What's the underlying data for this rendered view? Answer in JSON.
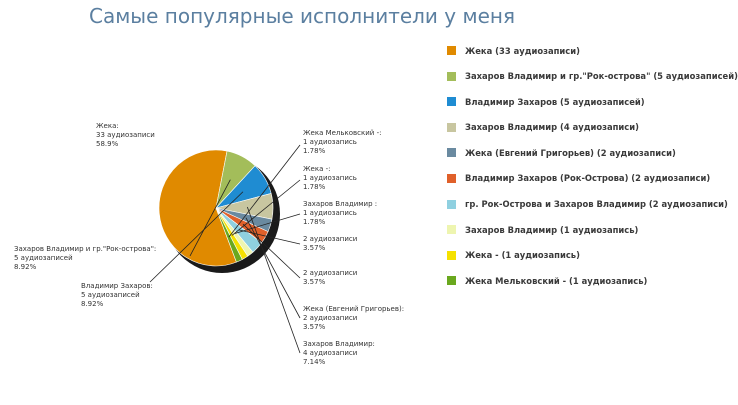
{
  "title": "Самые популярные исполнители у меня",
  "chart_data": {
    "type": "pie",
    "title": "Самые популярные исполнители у меня",
    "legend_position": "right",
    "slices": [
      {
        "name": "Жека (33 аудиозаписи)",
        "value": 33,
        "percent": "58.9%",
        "color": "#e08a00",
        "label": [
          "Жека:",
          "33 аудиозаписи",
          "58.9%"
        ]
      },
      {
        "name": "Захаров Владимир и гр.\"Рок-острова\" (5 аудиозаписей)",
        "value": 5,
        "percent": "8.92%",
        "color": "#a3bd5a",
        "label": [
          "Захаров Владимир и гр.\"Рок-острова\":",
          "5 аудиозаписей",
          "8.92%"
        ]
      },
      {
        "name": "Владимир Захаров (5 аудиозаписей)",
        "value": 5,
        "percent": "8.92%",
        "color": "#1f8cd2",
        "label": [
          "Владимир Захаров:",
          "5 аудиозаписей",
          "8.92%"
        ]
      },
      {
        "name": "Захаров Владимир (4 аудиозаписи)",
        "value": 4,
        "percent": "7.14%",
        "color": "#c8c6a0",
        "label": [
          "Захаров Владимир:",
          "4 аудиозаписи",
          "7.14%"
        ]
      },
      {
        "name": "Жека (Евгений Григорьев) (2 аудиозаписи)",
        "value": 2,
        "percent": "3.57%",
        "color": "#6a8aa0",
        "label": [
          "Жека (Евгений Григорьев):",
          "2 аудиозаписи",
          "3.57%"
        ]
      },
      {
        "name": "Владимир Захаров (Рок-Острова) (2 аудиозаписи)",
        "value": 2,
        "percent": "3.57%",
        "color": "#e0602a",
        "label": [
          "2 аудиозаписи",
          "3.57%"
        ]
      },
      {
        "name": "гр. Рок-Острова и Захаров Владимир (2 аудиозаписи)",
        "value": 2,
        "percent": "3.57%",
        "color": "#8fd0e0",
        "label": [
          "2 аудиозаписи",
          "3.57%"
        ]
      },
      {
        "name": "Захаров Владимир  (1 аудиозапись)",
        "value": 1,
        "percent": "1.78%",
        "color": "#eef5b0",
        "label": [
          "Захаров Владимир :",
          "1 аудиозапись",
          "1.78%"
        ]
      },
      {
        "name": "Жека - (1 аудиозапись)",
        "value": 1,
        "percent": "1.78%",
        "color": "#f5e100",
        "label": [
          "Жека -:",
          "1 аудиозапись",
          "1.78%"
        ]
      },
      {
        "name": "Жека Мельковский - (1 аудиозапись)",
        "value": 1,
        "percent": "1.78%",
        "color": "#6aa81e",
        "label": [
          "Жека Мельковский -:",
          "1 аудиозапись",
          "1.78%"
        ]
      }
    ]
  }
}
